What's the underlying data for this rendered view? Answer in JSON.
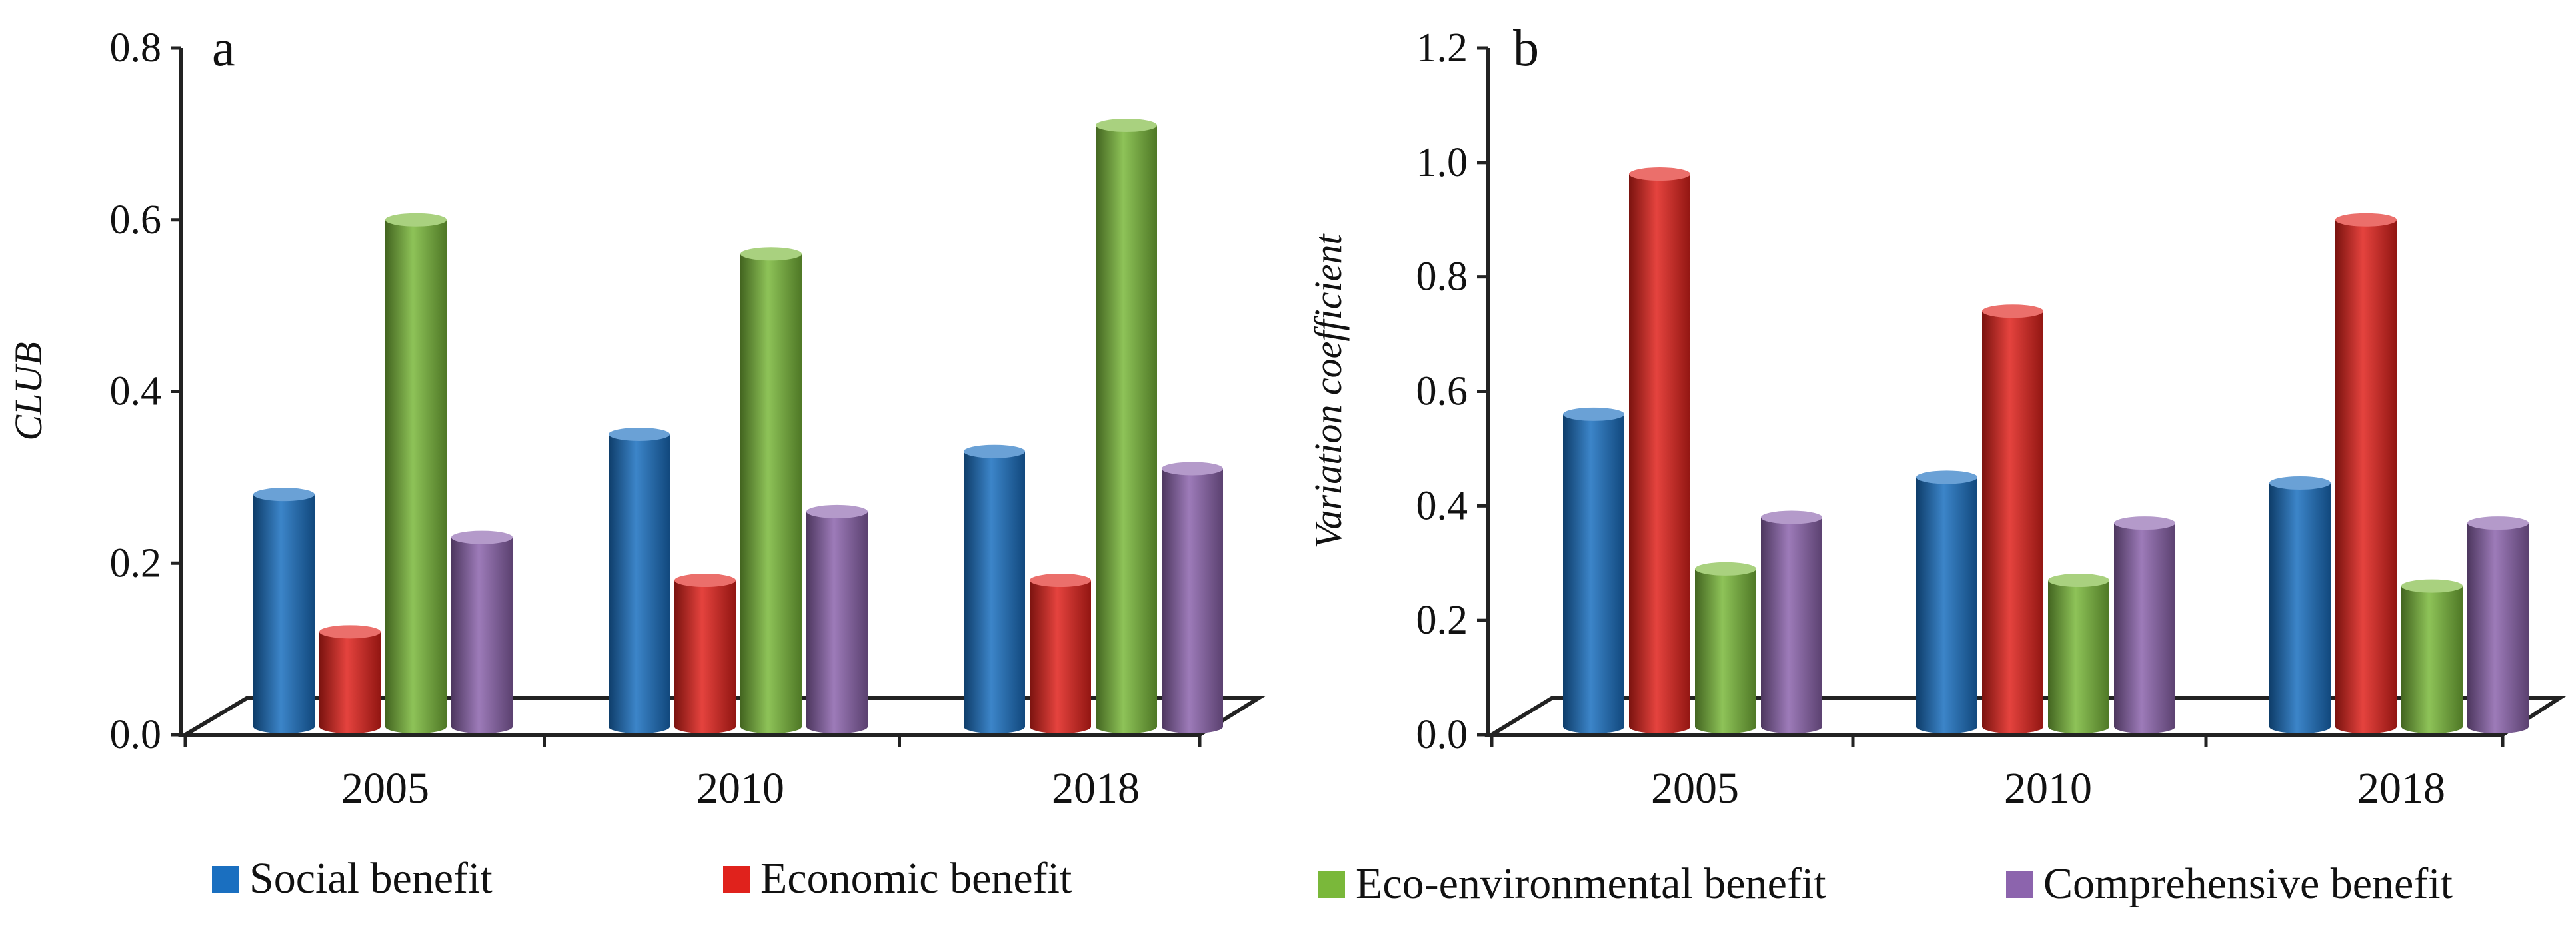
{
  "colors": {
    "Social benefit": "#1a6fc0",
    "Economic benefit": "#e0221c",
    "Eco-environmental benefit": "#7ab83a",
    "Comprehensive benefit": "#8c64ad"
  },
  "legend": [
    "Social benefit",
    "Economic benefit",
    "Eco-environmental benefit",
    "Comprehensive benefit"
  ],
  "chart_data": [
    {
      "type": "bar",
      "style": "3d-cylinder",
      "panel_label": "a",
      "title": "",
      "xlabel": "",
      "ylabel": "CLUB",
      "ylim": [
        0,
        0.8
      ],
      "yticks": [
        "0.0",
        "0.2",
        "0.4",
        "0.6",
        "0.8"
      ],
      "categories": [
        "2005",
        "2010",
        "2018"
      ],
      "series": [
        {
          "name": "Social benefit",
          "values": [
            0.28,
            0.35,
            0.33
          ]
        },
        {
          "name": "Economic benefit",
          "values": [
            0.12,
            0.18,
            0.18
          ]
        },
        {
          "name": "Eco-environmental benefit",
          "values": [
            0.6,
            0.56,
            0.71
          ]
        },
        {
          "name": "Comprehensive benefit",
          "values": [
            0.23,
            0.26,
            0.31
          ]
        }
      ]
    },
    {
      "type": "bar",
      "style": "3d-cylinder",
      "panel_label": "b",
      "title": "",
      "xlabel": "",
      "ylabel": "Variation coefficient",
      "ylim": [
        0,
        1.2
      ],
      "yticks": [
        "0.0",
        "0.2",
        "0.4",
        "0.6",
        "0.8",
        "1.0",
        "1.2"
      ],
      "categories": [
        "2005",
        "2010",
        "2018"
      ],
      "series": [
        {
          "name": "Social benefit",
          "values": [
            0.56,
            0.45,
            0.44
          ]
        },
        {
          "name": "Economic benefit",
          "values": [
            0.98,
            0.74,
            0.9
          ]
        },
        {
          "name": "Eco-environmental benefit",
          "values": [
            0.29,
            0.27,
            0.26
          ]
        },
        {
          "name": "Comprehensive benefit",
          "values": [
            0.38,
            0.37,
            0.37
          ]
        }
      ]
    }
  ]
}
